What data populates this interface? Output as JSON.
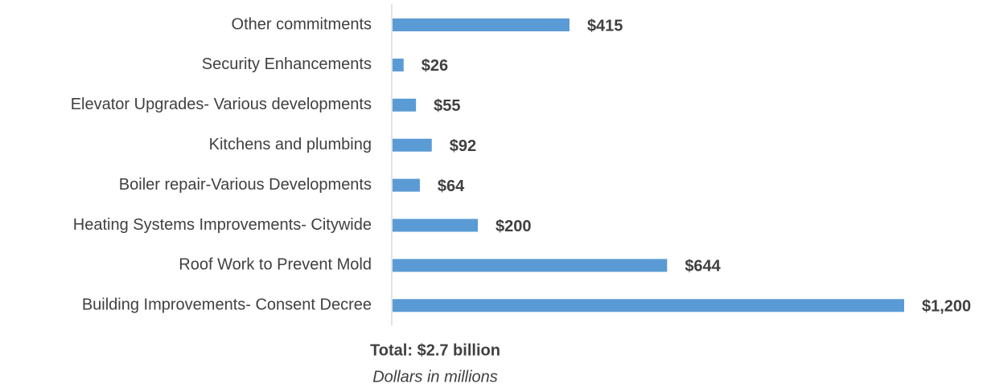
{
  "chart_data": {
    "type": "barh",
    "categories": [
      "Other commitments",
      "Security Enhancements",
      "Elevator Upgrades- Various developments",
      "Kitchens and plumbing",
      "Boiler repair-Various Developments",
      "Heating Systems Improvements- Citywide",
      "Roof Work to Prevent Mold",
      "Building Improvements- Consent Decree"
    ],
    "values": [
      415,
      26,
      55,
      92,
      64,
      200,
      644,
      1200
    ],
    "value_labels": [
      "$415",
      "$26",
      "$55",
      "$92",
      "$64",
      "$200",
      "$644",
      "$1,200"
    ],
    "color": "#5b9bd5",
    "annotations": [
      "Total: $2.7 billion",
      "Dollars in millions"
    ]
  }
}
